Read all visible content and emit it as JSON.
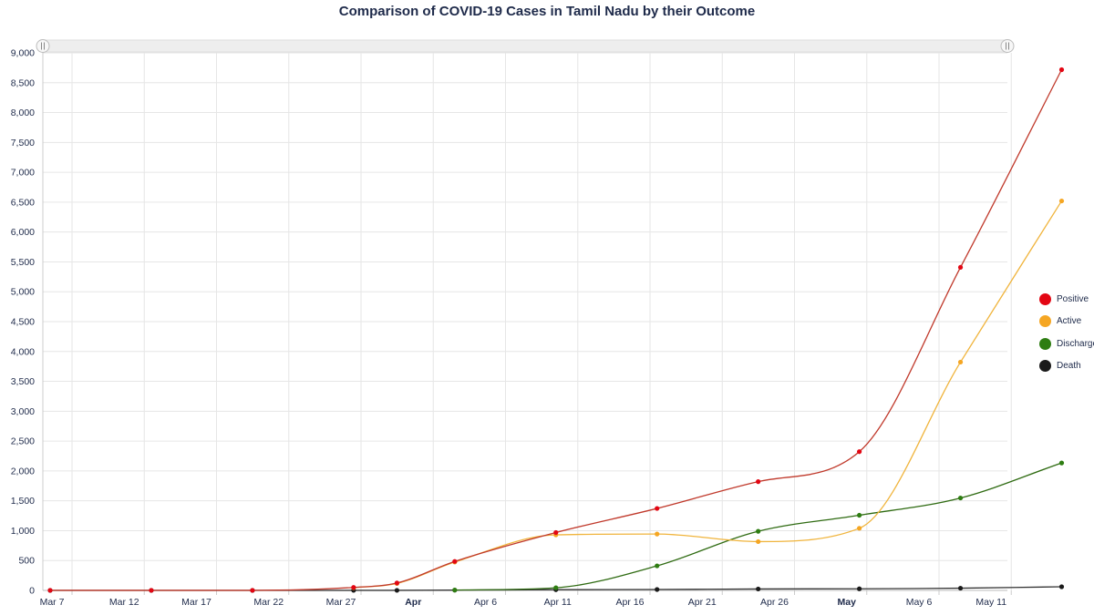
{
  "chart_data": {
    "type": "line",
    "title": "Comparison of COVID-19 Cases in Tamil Nadu by their Outcome",
    "xlabel": "",
    "ylabel": "",
    "x_start": "Mar 7",
    "x_end": "May 11",
    "xlim_days": [
      0,
      65
    ],
    "ylim": [
      0,
      9000
    ],
    "y_ticks": [
      0,
      500,
      1000,
      1500,
      2000,
      2500,
      3000,
      3500,
      4000,
      4500,
      5000,
      5500,
      6000,
      6500,
      7000,
      7500,
      8000,
      8500,
      9000
    ],
    "y_tick_labels": [
      "0",
      "500",
      "1,000",
      "1,500",
      "2,000",
      "2,500",
      "3,000",
      "3,500",
      "4,000",
      "4,500",
      "5,000",
      "5,500",
      "6,000",
      "6,500",
      "7,000",
      "7,500",
      "8,000",
      "8,500",
      "9,000"
    ],
    "x_ticks": [
      {
        "day": 0,
        "label": "Mar 7",
        "bold": false
      },
      {
        "day": 5,
        "label": "Mar 12",
        "bold": false
      },
      {
        "day": 10,
        "label": "Mar 17",
        "bold": false
      },
      {
        "day": 15,
        "label": "Mar 22",
        "bold": false
      },
      {
        "day": 20,
        "label": "Mar 27",
        "bold": false
      },
      {
        "day": 25,
        "label": "Apr",
        "bold": true
      },
      {
        "day": 30,
        "label": "Apr 6",
        "bold": false
      },
      {
        "day": 35,
        "label": "Apr 11",
        "bold": false
      },
      {
        "day": 40,
        "label": "Apr 16",
        "bold": false
      },
      {
        "day": 45,
        "label": "Apr 21",
        "bold": false
      },
      {
        "day": 50,
        "label": "Apr 26",
        "bold": false
      },
      {
        "day": 55,
        "label": "May",
        "bold": true
      },
      {
        "day": 60,
        "label": "May 6",
        "bold": false
      },
      {
        "day": 65,
        "label": "May 11",
        "bold": false
      }
    ],
    "grid": true,
    "legend_position": "right",
    "series": [
      {
        "name": "Positive",
        "color": "#e30613",
        "line_color": "#c0392b",
        "points": [
          [
            0,
            1
          ],
          [
            7,
            1
          ],
          [
            14,
            1
          ],
          [
            21,
            50
          ],
          [
            24,
            124
          ],
          [
            28,
            485
          ],
          [
            35,
            969
          ],
          [
            42,
            1372
          ],
          [
            49,
            1821
          ],
          [
            56,
            2323
          ],
          [
            63,
            5409
          ],
          [
            70,
            8718
          ]
        ]
      },
      {
        "name": "Active",
        "color": "#f5a623",
        "line_color": "#f0b43c",
        "points": [
          [
            21,
            45
          ],
          [
            24,
            116
          ],
          [
            28,
            474
          ],
          [
            35,
            930
          ],
          [
            42,
            944
          ],
          [
            49,
            817
          ],
          [
            56,
            1040
          ],
          [
            63,
            3822
          ],
          [
            70,
            6520
          ]
        ]
      },
      {
        "name": "Discharged",
        "color": "#2e7d12",
        "line_color": "#2f6b12",
        "points": [
          [
            28,
            6
          ],
          [
            35,
            44
          ],
          [
            42,
            411
          ],
          [
            49,
            990
          ],
          [
            56,
            1258
          ],
          [
            63,
            1547
          ],
          [
            70,
            2134
          ]
        ]
      },
      {
        "name": "Death",
        "color": "#1a1a1a",
        "line_color": "#333333",
        "points": [
          [
            0,
            0
          ],
          [
            7,
            0
          ],
          [
            14,
            0
          ],
          [
            21,
            1
          ],
          [
            24,
            1
          ],
          [
            28,
            5
          ],
          [
            35,
            12
          ],
          [
            42,
            15
          ],
          [
            49,
            24
          ],
          [
            56,
            27
          ],
          [
            63,
            37
          ],
          [
            70,
            61
          ]
        ]
      }
    ]
  }
}
